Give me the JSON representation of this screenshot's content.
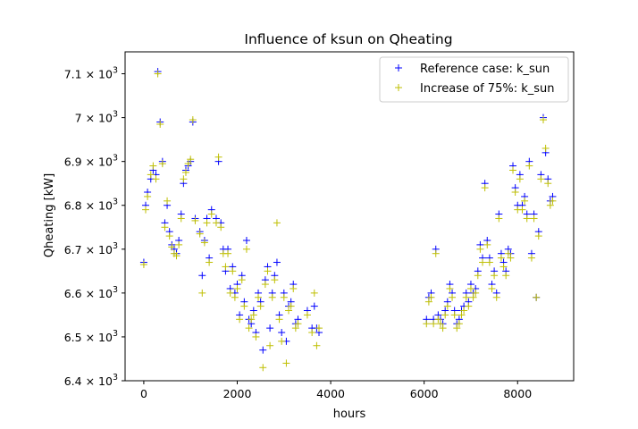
{
  "chart_data": {
    "type": "scatter",
    "title": "Influence of ksun on Qheating",
    "xlabel": "hours",
    "ylabel": "Qheating [kW]",
    "xlim": [
      -400,
      9200
    ],
    "ylim": [
      6400,
      7150
    ],
    "xticks": [
      0,
      2000,
      4000,
      6000,
      8000
    ],
    "xtick_labels": [
      "0",
      "2000",
      "4000",
      "6000",
      "8000"
    ],
    "yticks": [
      6400,
      6500,
      6600,
      6700,
      6800,
      6900,
      7000,
      7100
    ],
    "ytick_mantissas": [
      "6.4",
      "6.5",
      "6.6",
      "6.7",
      "6.8",
      "6.9",
      "7",
      "7.1"
    ],
    "ytick_base": "10",
    "ytick_exp": "3",
    "grid": false,
    "legend_position": "upper right",
    "series": [
      {
        "name": "Reference case: k_sun",
        "color": "#0000ff",
        "marker": "+",
        "points": [
          [
            0,
            6670
          ],
          [
            40,
            6800
          ],
          [
            80,
            6830
          ],
          [
            150,
            6860
          ],
          [
            200,
            6880
          ],
          [
            260,
            6870
          ],
          [
            300,
            7105
          ],
          [
            350,
            6990
          ],
          [
            400,
            6900
          ],
          [
            450,
            6760
          ],
          [
            500,
            6800
          ],
          [
            550,
            6740
          ],
          [
            600,
            6710
          ],
          [
            650,
            6700
          ],
          [
            700,
            6690
          ],
          [
            750,
            6720
          ],
          [
            800,
            6780
          ],
          [
            850,
            6850
          ],
          [
            900,
            6880
          ],
          [
            950,
            6890
          ],
          [
            1000,
            6900
          ],
          [
            1050,
            6990
          ],
          [
            1100,
            6770
          ],
          [
            1200,
            6740
          ],
          [
            1250,
            6640
          ],
          [
            1300,
            6720
          ],
          [
            1350,
            6770
          ],
          [
            1400,
            6680
          ],
          [
            1450,
            6790
          ],
          [
            1550,
            6770
          ],
          [
            1600,
            6900
          ],
          [
            1650,
            6760
          ],
          [
            1700,
            6700
          ],
          [
            1750,
            6650
          ],
          [
            1800,
            6700
          ],
          [
            1850,
            6610
          ],
          [
            1900,
            6660
          ],
          [
            1950,
            6600
          ],
          [
            2000,
            6620
          ],
          [
            2050,
            6550
          ],
          [
            2100,
            6640
          ],
          [
            2150,
            6580
          ],
          [
            2200,
            6720
          ],
          [
            2250,
            6540
          ],
          [
            2300,
            6530
          ],
          [
            2350,
            6560
          ],
          [
            2400,
            6510
          ],
          [
            2450,
            6600
          ],
          [
            2500,
            6580
          ],
          [
            2550,
            6470
          ],
          [
            2600,
            6630
          ],
          [
            2650,
            6660
          ],
          [
            2700,
            6520
          ],
          [
            2750,
            6600
          ],
          [
            2800,
            6640
          ],
          [
            2850,
            6670
          ],
          [
            2900,
            6550
          ],
          [
            2950,
            6510
          ],
          [
            3000,
            6600
          ],
          [
            3050,
            6490
          ],
          [
            3100,
            6570
          ],
          [
            3150,
            6580
          ],
          [
            3200,
            6620
          ],
          [
            3250,
            6530
          ],
          [
            3300,
            6540
          ],
          [
            3500,
            6560
          ],
          [
            3600,
            6520
          ],
          [
            3650,
            6570
          ],
          [
            3700,
            6520
          ],
          [
            3750,
            6510
          ],
          [
            6050,
            6540
          ],
          [
            6100,
            6590
          ],
          [
            6150,
            6600
          ],
          [
            6200,
            6540
          ],
          [
            6250,
            6700
          ],
          [
            6300,
            6550
          ],
          [
            6350,
            6540
          ],
          [
            6400,
            6530
          ],
          [
            6450,
            6560
          ],
          [
            6500,
            6580
          ],
          [
            6550,
            6620
          ],
          [
            6600,
            6600
          ],
          [
            6650,
            6560
          ],
          [
            6700,
            6530
          ],
          [
            6750,
            6540
          ],
          [
            6800,
            6560
          ],
          [
            6850,
            6570
          ],
          [
            6900,
            6600
          ],
          [
            6950,
            6580
          ],
          [
            7000,
            6620
          ],
          [
            7050,
            6600
          ],
          [
            7100,
            6610
          ],
          [
            7150,
            6650
          ],
          [
            7200,
            6710
          ],
          [
            7250,
            6680
          ],
          [
            7300,
            6850
          ],
          [
            7350,
            6720
          ],
          [
            7400,
            6680
          ],
          [
            7450,
            6620
          ],
          [
            7500,
            6650
          ],
          [
            7550,
            6600
          ],
          [
            7600,
            6780
          ],
          [
            7650,
            6690
          ],
          [
            7700,
            6670
          ],
          [
            7750,
            6650
          ],
          [
            7800,
            6700
          ],
          [
            7850,
            6690
          ],
          [
            7900,
            6890
          ],
          [
            7950,
            6840
          ],
          [
            8000,
            6800
          ],
          [
            8050,
            6870
          ],
          [
            8100,
            6800
          ],
          [
            8150,
            6820
          ],
          [
            8200,
            6780
          ],
          [
            8250,
            6900
          ],
          [
            8300,
            6690
          ],
          [
            8350,
            6780
          ],
          [
            8400,
            6590
          ],
          [
            8450,
            6740
          ],
          [
            8500,
            6870
          ],
          [
            8550,
            7000
          ],
          [
            8600,
            6920
          ],
          [
            8650,
            6860
          ],
          [
            8700,
            6810
          ],
          [
            8750,
            6820
          ]
        ]
      },
      {
        "name": "Increase of 75%: k_sun",
        "color": "#bfbf00",
        "marker": "+",
        "points": [
          [
            0,
            6665
          ],
          [
            40,
            6790
          ],
          [
            80,
            6820
          ],
          [
            150,
            6870
          ],
          [
            200,
            6890
          ],
          [
            260,
            6860
          ],
          [
            300,
            7100
          ],
          [
            350,
            6985
          ],
          [
            400,
            6895
          ],
          [
            450,
            6750
          ],
          [
            500,
            6810
          ],
          [
            550,
            6730
          ],
          [
            600,
            6705
          ],
          [
            650,
            6690
          ],
          [
            700,
            6685
          ],
          [
            750,
            6710
          ],
          [
            800,
            6770
          ],
          [
            850,
            6860
          ],
          [
            900,
            6875
          ],
          [
            950,
            6895
          ],
          [
            1000,
            6905
          ],
          [
            1050,
            6995
          ],
          [
            1100,
            6765
          ],
          [
            1200,
            6735
          ],
          [
            1250,
            6600
          ],
          [
            1300,
            6715
          ],
          [
            1350,
            6760
          ],
          [
            1400,
            6670
          ],
          [
            1450,
            6780
          ],
          [
            1550,
            6760
          ],
          [
            1600,
            6910
          ],
          [
            1650,
            6750
          ],
          [
            1700,
            6690
          ],
          [
            1750,
            6660
          ],
          [
            1800,
            6690
          ],
          [
            1850,
            6600
          ],
          [
            1900,
            6650
          ],
          [
            1950,
            6590
          ],
          [
            2000,
            6610
          ],
          [
            2050,
            6540
          ],
          [
            2100,
            6630
          ],
          [
            2150,
            6570
          ],
          [
            2200,
            6700
          ],
          [
            2250,
            6520
          ],
          [
            2300,
            6540
          ],
          [
            2350,
            6550
          ],
          [
            2400,
            6500
          ],
          [
            2450,
            6590
          ],
          [
            2500,
            6570
          ],
          [
            2550,
            6430
          ],
          [
            2600,
            6620
          ],
          [
            2650,
            6650
          ],
          [
            2700,
            6480
          ],
          [
            2750,
            6590
          ],
          [
            2800,
            6630
          ],
          [
            2850,
            6760
          ],
          [
            2900,
            6540
          ],
          [
            2950,
            6490
          ],
          [
            3000,
            6590
          ],
          [
            3050,
            6440
          ],
          [
            3100,
            6560
          ],
          [
            3150,
            6570
          ],
          [
            3200,
            6610
          ],
          [
            3250,
            6520
          ],
          [
            3300,
            6530
          ],
          [
            3500,
            6550
          ],
          [
            3600,
            6510
          ],
          [
            3650,
            6600
          ],
          [
            3700,
            6480
          ],
          [
            3750,
            6520
          ],
          [
            6050,
            6530
          ],
          [
            6100,
            6580
          ],
          [
            6150,
            6590
          ],
          [
            6200,
            6530
          ],
          [
            6250,
            6690
          ],
          [
            6300,
            6540
          ],
          [
            6350,
            6530
          ],
          [
            6400,
            6520
          ],
          [
            6450,
            6550
          ],
          [
            6500,
            6570
          ],
          [
            6550,
            6610
          ],
          [
            6600,
            6590
          ],
          [
            6650,
            6550
          ],
          [
            6700,
            6520
          ],
          [
            6750,
            6530
          ],
          [
            6800,
            6550
          ],
          [
            6850,
            6560
          ],
          [
            6900,
            6590
          ],
          [
            6950,
            6570
          ],
          [
            7000,
            6610
          ],
          [
            7050,
            6590
          ],
          [
            7100,
            6600
          ],
          [
            7150,
            6640
          ],
          [
            7200,
            6700
          ],
          [
            7250,
            6670
          ],
          [
            7300,
            6840
          ],
          [
            7350,
            6710
          ],
          [
            7400,
            6670
          ],
          [
            7450,
            6610
          ],
          [
            7500,
            6640
          ],
          [
            7550,
            6590
          ],
          [
            7600,
            6770
          ],
          [
            7650,
            6680
          ],
          [
            7700,
            6660
          ],
          [
            7750,
            6640
          ],
          [
            7800,
            6690
          ],
          [
            7850,
            6680
          ],
          [
            7900,
            6880
          ],
          [
            7950,
            6830
          ],
          [
            8000,
            6790
          ],
          [
            8050,
            6860
          ],
          [
            8100,
            6790
          ],
          [
            8150,
            6810
          ],
          [
            8200,
            6770
          ],
          [
            8250,
            6890
          ],
          [
            8300,
            6680
          ],
          [
            8350,
            6770
          ],
          [
            8400,
            6590
          ],
          [
            8450,
            6730
          ],
          [
            8500,
            6860
          ],
          [
            8550,
            6995
          ],
          [
            8600,
            6930
          ],
          [
            8650,
            6850
          ],
          [
            8700,
            6800
          ],
          [
            8750,
            6810
          ]
        ]
      }
    ]
  }
}
